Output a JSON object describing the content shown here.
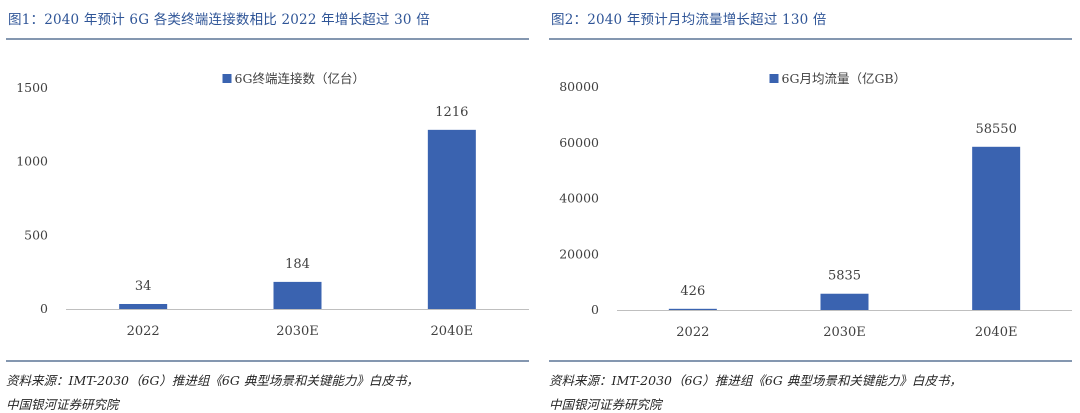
{
  "colors": {
    "bar": "#3a63b0",
    "title": "#2f5597",
    "rule": "#8497b0",
    "axis": "#bfbfbf",
    "text": "#404040"
  },
  "figures": [
    {
      "title": "图1：2040 年预计 6G 各类终端连接数相比 2022 年增长超过 30 倍",
      "source_line1": "资料来源：IMT-2030（6G）推进组《6G 典型场景和关键能力》白皮书，",
      "source_line2": "中国银河证券研究院"
    },
    {
      "title": "图2：2040 年预计月均流量增长超过 130 倍",
      "source_line1": "资料来源：IMT-2030（6G）推进组《6G 典型场景和关键能力》白皮书，",
      "source_line2": "中国银河证券研究院"
    }
  ],
  "chart_data": [
    {
      "type": "bar",
      "categories": [
        "2022",
        "2030E",
        "2040E"
      ],
      "series": [
        {
          "name": "6G终端连接数（亿台）",
          "values": [
            34,
            184,
            1216
          ]
        }
      ],
      "data_labels": [
        "34",
        "184",
        "1216"
      ],
      "ylim": [
        0,
        1500
      ],
      "yticks": [
        0,
        500,
        1000,
        1500
      ],
      "ytick_labels": [
        "0",
        "500",
        "1000",
        "1500"
      ],
      "grid": false,
      "legend": "top-center"
    },
    {
      "type": "bar",
      "categories": [
        "2022",
        "2030E",
        "2040E"
      ],
      "series": [
        {
          "name": "6G月均流量（亿GB）",
          "values": [
            426,
            5835,
            58550
          ]
        }
      ],
      "data_labels": [
        "426",
        "5835",
        "58550"
      ],
      "ylim": [
        0,
        80000
      ],
      "yticks": [
        0,
        20000,
        40000,
        60000,
        80000
      ],
      "ytick_labels": [
        "0",
        "20000",
        "40000",
        "60000",
        "80000"
      ],
      "grid": false,
      "legend": "top-center"
    }
  ]
}
